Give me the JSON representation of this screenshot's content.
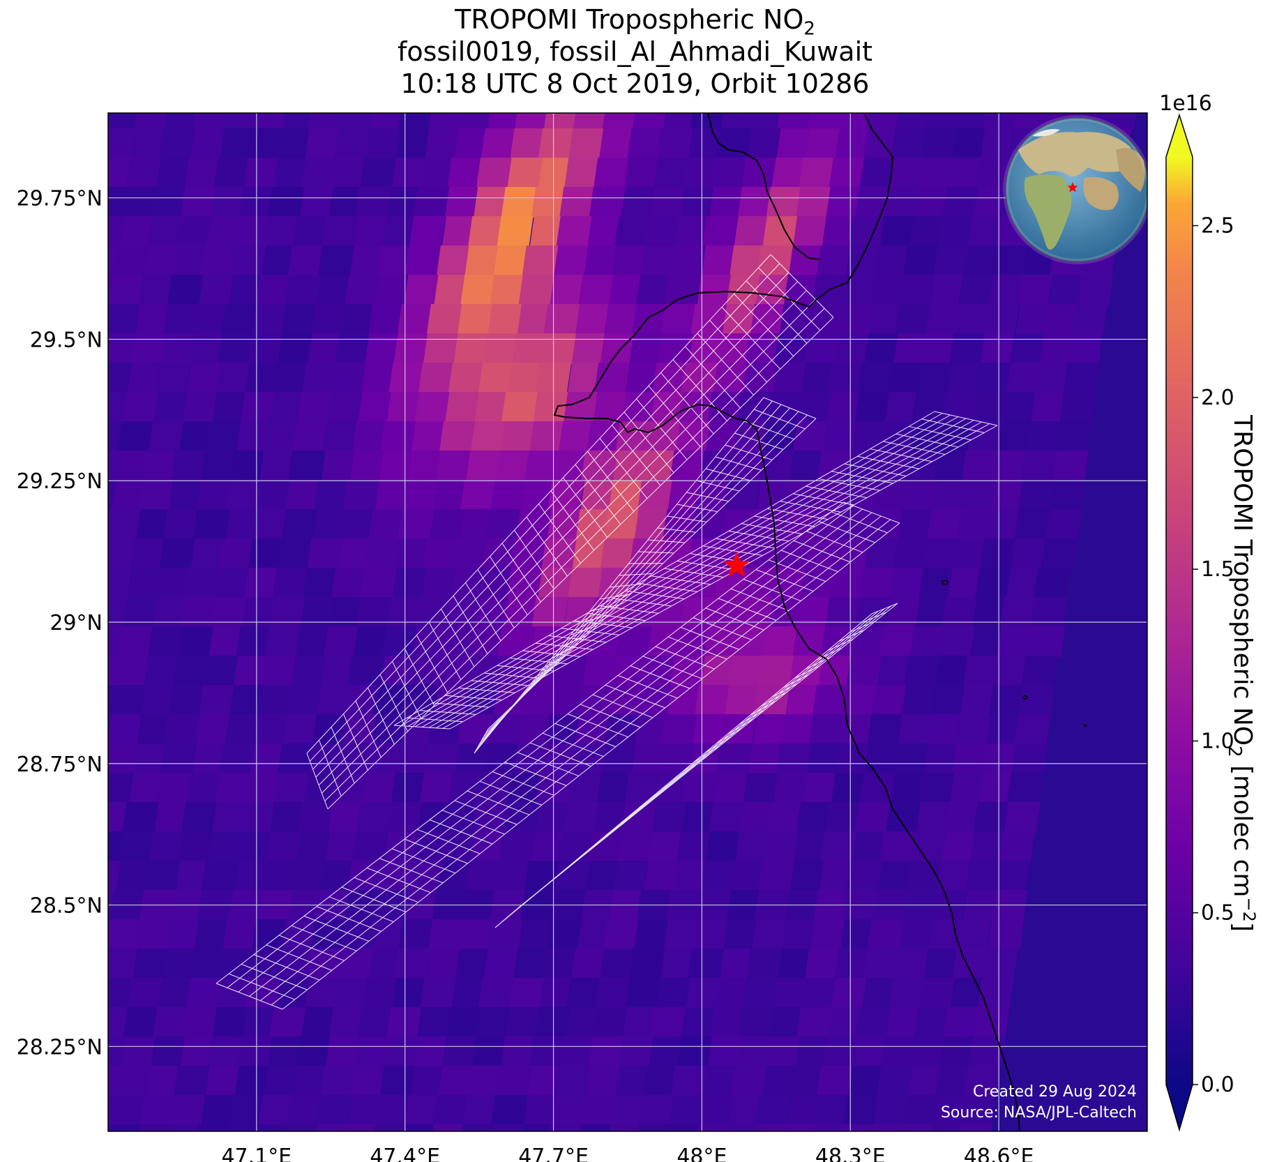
{
  "title": {
    "line1": "TROPOMI Tropospheric NO",
    "line1_sub": "2",
    "line2": "fossil0019, fossil_Al_Ahmadi_Kuwait",
    "line3": "10:18 UTC 8 Oct 2019, Orbit 10286"
  },
  "map": {
    "lon_range": [
      46.8,
      48.9
    ],
    "lat_range": [
      28.1,
      29.9
    ],
    "lon_ticks": [
      {
        "v": 47.1,
        "label": "47.1°E"
      },
      {
        "v": 47.4,
        "label": "47.4°E"
      },
      {
        "v": 47.7,
        "label": "47.7°E"
      },
      {
        "v": 48.0,
        "label": "48°E"
      },
      {
        "v": 48.3,
        "label": "48.3°E"
      },
      {
        "v": 48.6,
        "label": "48.6°E"
      }
    ],
    "lat_ticks": [
      {
        "v": 29.75,
        "label": "29.75°N"
      },
      {
        "v": 29.5,
        "label": "29.5°N"
      },
      {
        "v": 29.25,
        "label": "29.25°N"
      },
      {
        "v": 29.0,
        "label": "29°N"
      },
      {
        "v": 28.75,
        "label": "28.75°N"
      },
      {
        "v": 28.5,
        "label": "28.5°N"
      },
      {
        "v": 28.25,
        "label": "28.25°N"
      }
    ],
    "grid": true,
    "source_marker": {
      "lon": 48.07,
      "lat": 29.1,
      "symbol": "star",
      "color": "#ff0000"
    },
    "footer_created": "Created 29 Aug 2024",
    "footer_source": "Source: NASA/JPL-Caltech",
    "inset_globe": "globe-locator-icon"
  },
  "colorbar": {
    "colormap": "plasma",
    "min": 0.0,
    "max": 2.7,
    "scale_label": "1e16",
    "ticks": [
      {
        "v": 0.0,
        "label": "0.0"
      },
      {
        "v": 0.5,
        "label": "0.5"
      },
      {
        "v": 1.0,
        "label": "1.0"
      },
      {
        "v": 1.5,
        "label": "1.5"
      },
      {
        "v": 2.0,
        "label": "2.0"
      },
      {
        "v": 2.5,
        "label": "2.5"
      }
    ],
    "label_main": "TROPOMI Tropospheric NO",
    "label_sub": "2",
    "label_units": " [molec cm",
    "label_exp": "−2",
    "label_close": "]"
  },
  "colors": {
    "background_low": "#2a0a93",
    "grid": "#c8c8e6",
    "mesh": "#ffffff",
    "coast": "#000000"
  }
}
